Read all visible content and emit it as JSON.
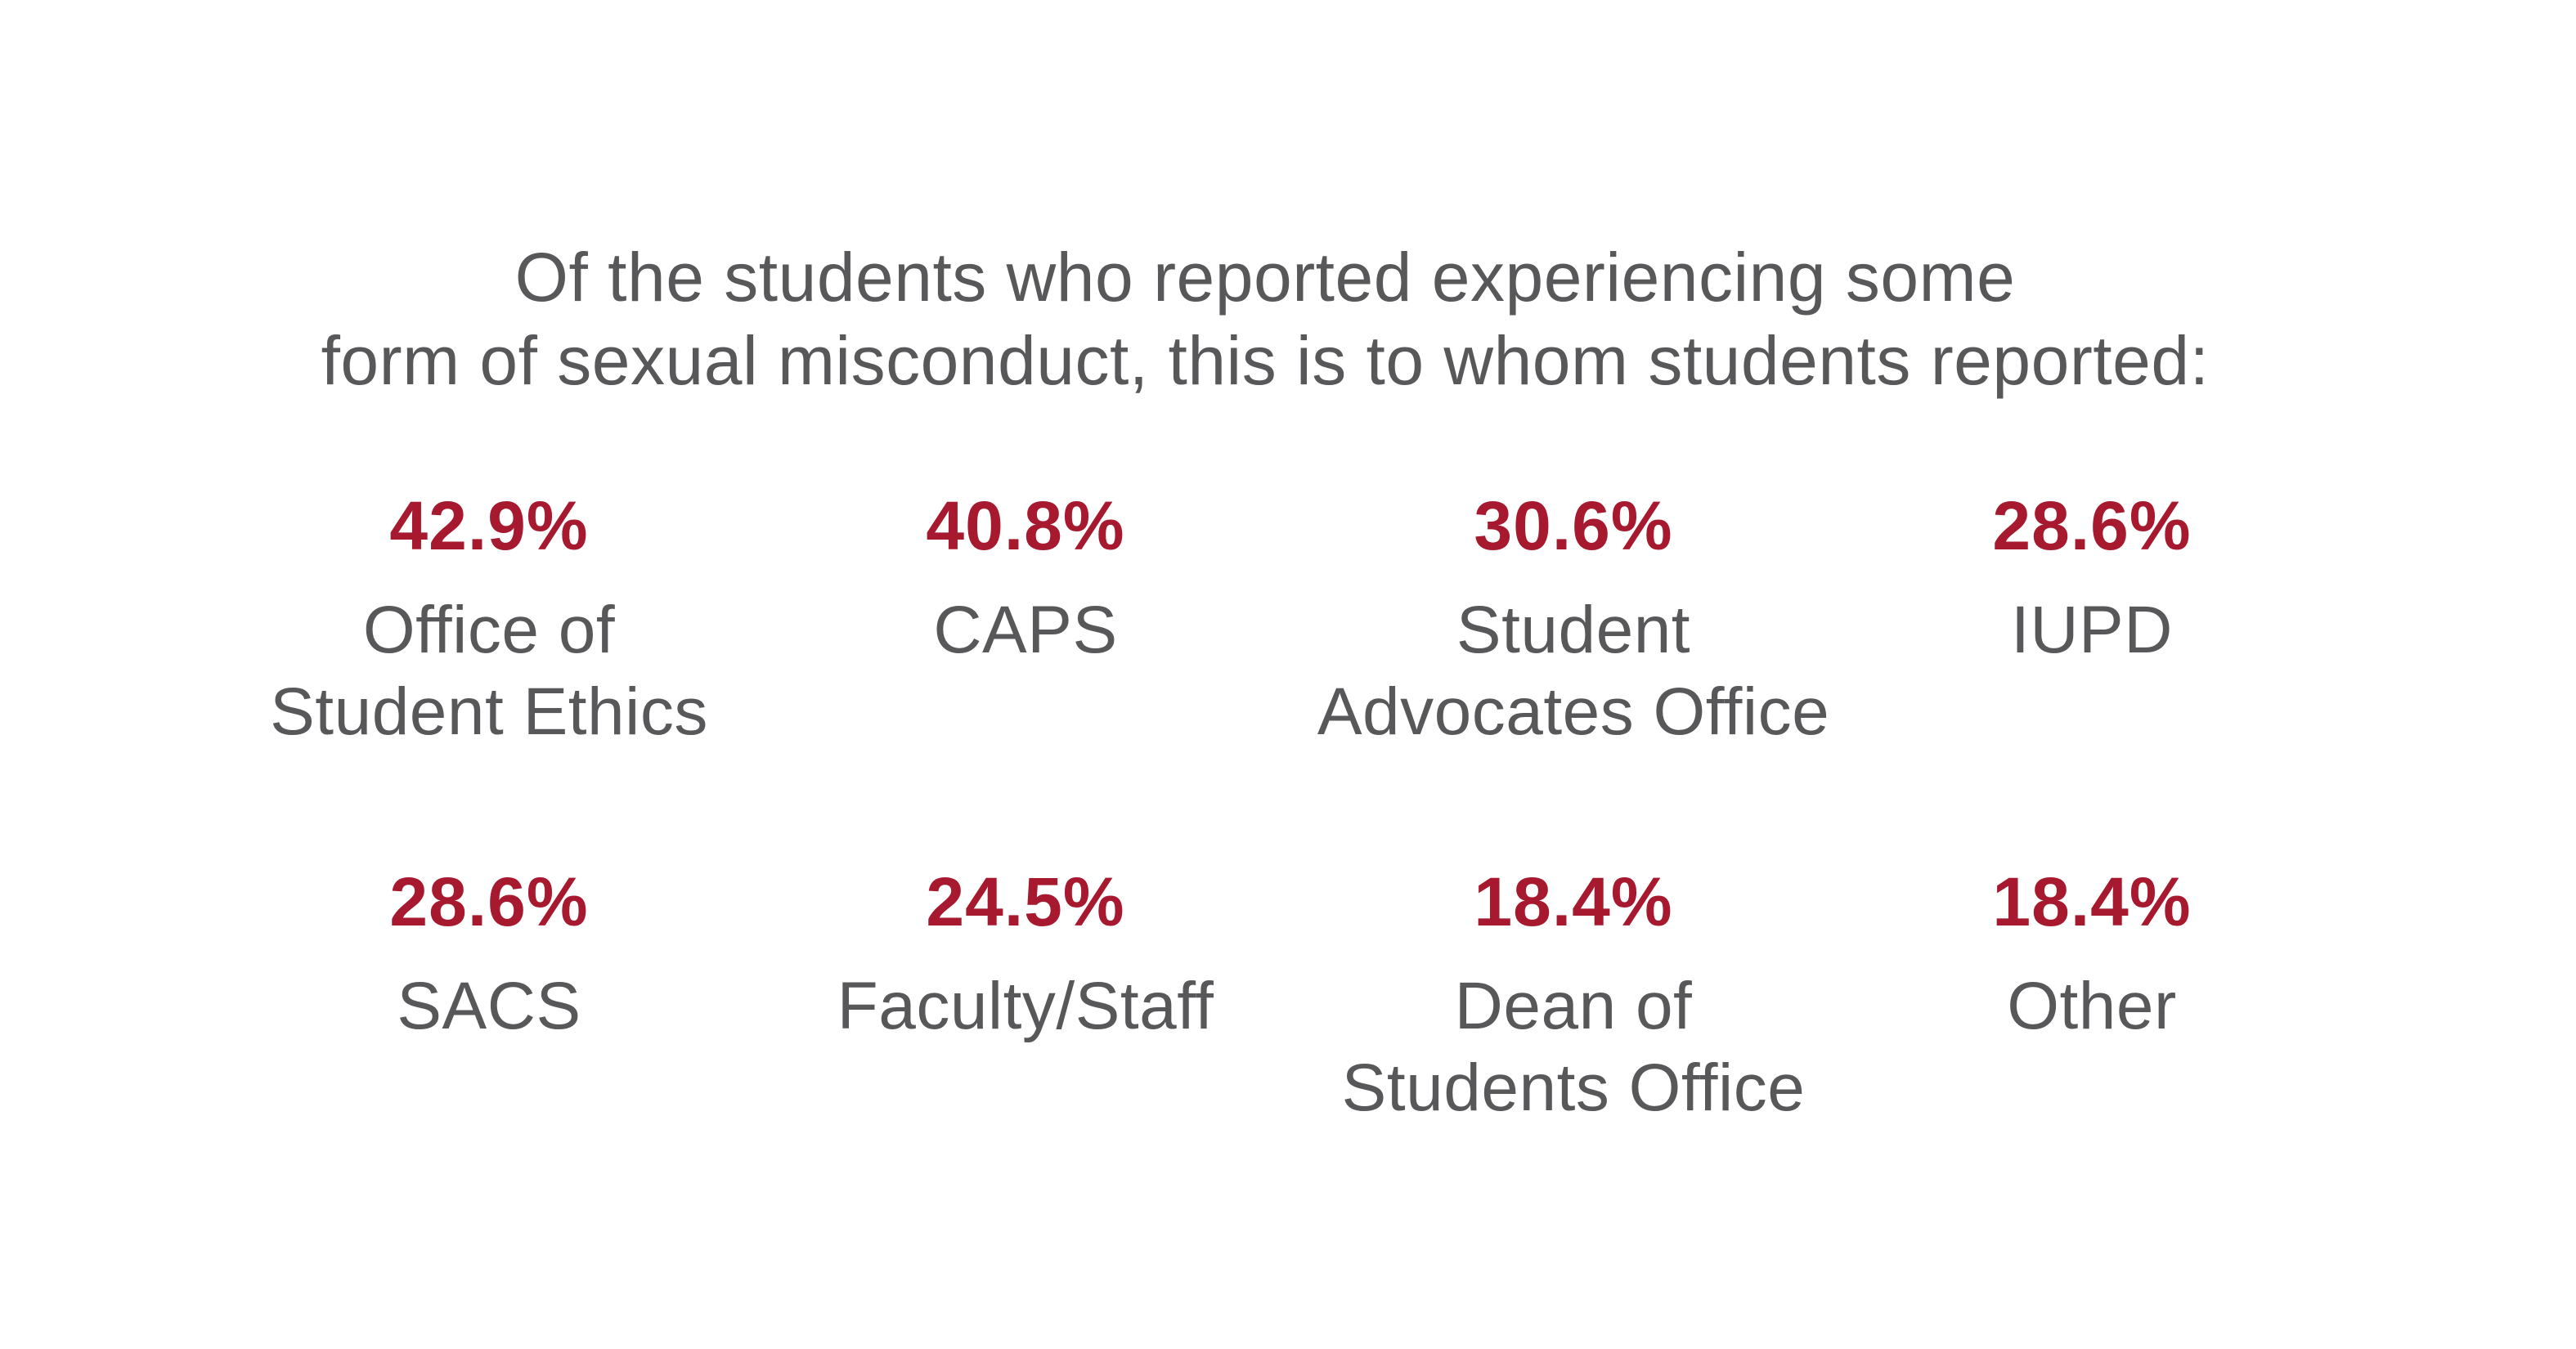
{
  "headline": {
    "line1": "Of the students who reported experiencing some",
    "line2": "form of sexual misconduct, this is to whom students reported:"
  },
  "stats": [
    {
      "percent": "42.9%",
      "label_lines": [
        "Office of",
        "Student Ethics"
      ]
    },
    {
      "percent": "40.8%",
      "label_lines": [
        "CAPS"
      ]
    },
    {
      "percent": "30.6%",
      "label_lines": [
        "Student",
        "Advocates Office"
      ]
    },
    {
      "percent": "28.6%",
      "label_lines": [
        "IUPD"
      ]
    },
    {
      "percent": "28.6%",
      "label_lines": [
        "SACS"
      ]
    },
    {
      "percent": "24.5%",
      "label_lines": [
        "Faculty/Staff"
      ]
    },
    {
      "percent": "18.4%",
      "label_lines": [
        "Dean of",
        "Students Office"
      ]
    },
    {
      "percent": "18.4%",
      "label_lines": [
        "Other"
      ]
    }
  ],
  "colors": {
    "accent": "#a6192e",
    "text": "#58585a",
    "background": "#ffffff"
  }
}
